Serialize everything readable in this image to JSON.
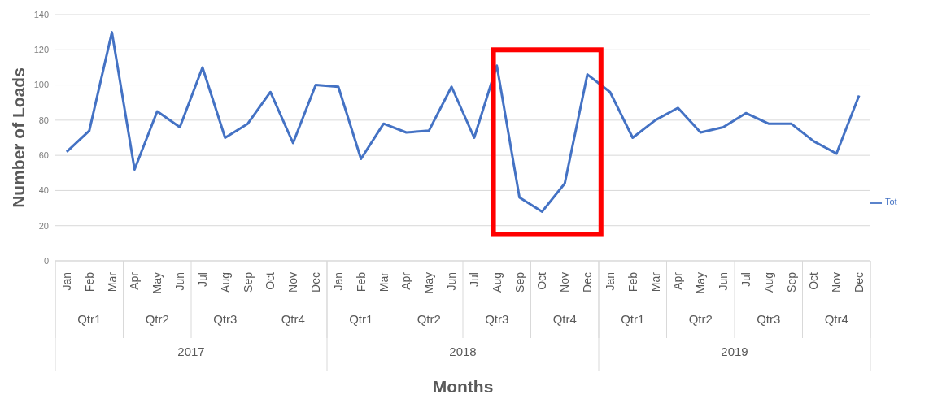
{
  "chart_data": {
    "type": "line",
    "xlabel": "Months",
    "ylabel": "Number of Loads",
    "categories": [
      "Jan",
      "Feb",
      "Mar",
      "Apr",
      "May",
      "Jun",
      "Jul",
      "Aug",
      "Sep",
      "Oct",
      "Nov",
      "Dec",
      "Jan",
      "Feb",
      "Mar",
      "Apr",
      "May",
      "Jun",
      "Jul",
      "Aug",
      "Sep",
      "Oct",
      "Nov",
      "Dec",
      "Jan",
      "Feb",
      "Mar",
      "Apr",
      "May",
      "Jun",
      "Jul",
      "Aug",
      "Sep",
      "Oct",
      "Nov",
      "Dec"
    ],
    "series": [
      {
        "name": "Tot",
        "color": "#4472c4",
        "values": [
          62,
          74,
          130,
          52,
          85,
          76,
          110,
          70,
          78,
          96,
          67,
          100,
          99,
          58,
          78,
          73,
          74,
          99,
          70,
          111,
          36,
          28,
          44,
          106,
          96,
          70,
          80,
          87,
          73,
          76,
          84,
          78,
          78,
          68,
          61,
          94
        ]
      }
    ],
    "annotations": [
      [
        "Qtr1",
        "Qtr2",
        "Qtr3",
        "Qtr4",
        "Qtr1",
        "Qtr2",
        "Qtr3",
        "Qtr4",
        "Qtr1",
        "Qtr2",
        "Qtr3",
        "Qtr4"
      ],
      [
        "2017",
        "2018",
        "2019"
      ]
    ],
    "ylim": [
      0,
      140
    ],
    "yticks": [
      0,
      20,
      40,
      60,
      80,
      100,
      120,
      140
    ],
    "grid": "y",
    "legend": "right",
    "marker": "none",
    "line_style": "solid"
  }
}
